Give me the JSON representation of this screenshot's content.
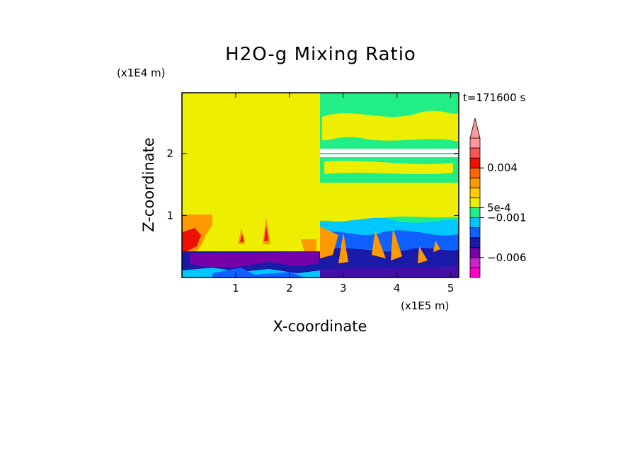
{
  "chart_data": {
    "type": "heatmap",
    "title": "H2O-g Mixing Ratio",
    "xlabel": "X-coordinate",
    "ylabel": "Z-coordinate",
    "x_scale_label": "(x1E5 m)",
    "y_scale_label": "(x1E4 m)",
    "time_label": "t=171600 s",
    "xlim": [
      0,
      5.15
    ],
    "ylim": [
      0,
      2.98
    ],
    "x_ticks": [
      1,
      2,
      3,
      4,
      5
    ],
    "x_tick_labels": [
      "1",
      "2",
      "3",
      "4",
      "5"
    ],
    "y_ticks": [
      1,
      2
    ],
    "y_tick_labels": [
      "1",
      "2"
    ],
    "colorbar": {
      "labels": [
        {
          "level": 11,
          "text": "0.004"
        },
        {
          "level": 7,
          "text": "5e-4"
        },
        {
          "level": 6,
          "text": "−0.001"
        },
        {
          "level": 2,
          "text": "−0.006"
        }
      ],
      "levels": 14,
      "colors": [
        "#ff00cc",
        "#cc22cc",
        "#7700aa",
        "#1a1aa8",
        "#1060ff",
        "#00c8ff",
        "#22ee88",
        "#eeee00",
        "#ffcc00",
        "#ff9900",
        "#ff6600",
        "#ee1100",
        "#ff5555",
        "#ff9999"
      ],
      "extend": "max"
    },
    "fields": {
      "left_half_background": "#eeee00",
      "right_half_upper_background": "#22ee88",
      "right_half_mid_background": "#eeee00",
      "surface_layer": "#1a1aa8"
    }
  },
  "colors": {
    "yellow": "#eeee00",
    "green": "#22ee88",
    "cyan": "#00c8ff",
    "blue": "#1060ff",
    "navy": "#1a1aa8",
    "purple": "#7700aa",
    "orange": "#ff9900",
    "red": "#ee1100"
  }
}
